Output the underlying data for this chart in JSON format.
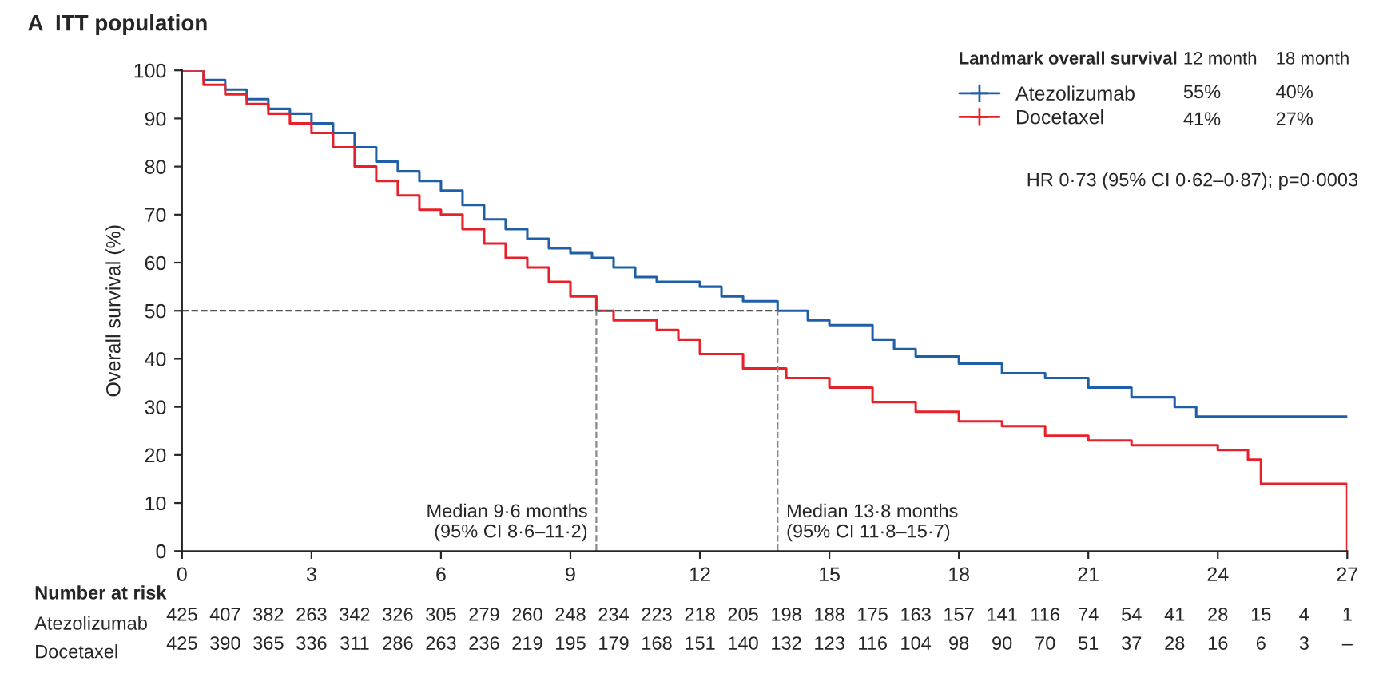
{
  "chart_data": {
    "type": "step",
    "title": "A  ITT population",
    "ylabel": "Overall survival (%)",
    "xlim": [
      0,
      27
    ],
    "xticks": [
      0,
      3,
      6,
      9,
      12,
      15,
      18,
      21,
      24,
      27
    ],
    "ylim": [
      0,
      100
    ],
    "yticks": [
      0,
      10,
      20,
      30,
      40,
      50,
      60,
      70,
      80,
      90,
      100
    ],
    "grid": false,
    "legend": "top right",
    "series": [
      {
        "name": "Atezolizumab",
        "color": "#1f5fa8",
        "x": [
          0,
          0.5,
          1,
          1.5,
          2,
          2.5,
          3,
          3.5,
          4,
          4.5,
          5,
          5.5,
          6,
          6.5,
          7,
          7.5,
          8,
          8.5,
          9,
          9.5,
          10,
          10.5,
          11,
          12,
          12.5,
          13,
          13.8,
          14.5,
          15,
          16,
          16.5,
          17,
          18,
          19,
          20,
          21,
          22,
          23,
          23.5,
          27
        ],
        "values": [
          100,
          98,
          96,
          94,
          92,
          91,
          89,
          87,
          84,
          81,
          79,
          77,
          75,
          72,
          69,
          67,
          65,
          63,
          62,
          61,
          59,
          57,
          56,
          55,
          53,
          52,
          50,
          48,
          47,
          44,
          42,
          40.5,
          39,
          37,
          36,
          34,
          32,
          30,
          28,
          28
        ]
      },
      {
        "name": "Docetaxel",
        "color": "#e8202a",
        "x": [
          0,
          0.5,
          1,
          1.5,
          2,
          2.5,
          3,
          3.5,
          4,
          4.5,
          5,
          5.5,
          6,
          6.5,
          7,
          7.5,
          8,
          8.5,
          9,
          9.6,
          10,
          11,
          11.5,
          12,
          13,
          14,
          15,
          16,
          17,
          18,
          19,
          20,
          21,
          22,
          23,
          24,
          24.7,
          25,
          26.9,
          27
        ],
        "values": [
          100,
          97,
          95,
          93,
          91,
          89,
          87,
          84,
          80,
          77,
          74,
          71,
          70,
          67,
          64,
          61,
          59,
          56,
          53,
          50,
          48,
          46,
          44,
          41,
          38,
          36,
          34,
          31,
          29,
          27,
          26,
          24,
          23,
          22,
          22,
          21,
          19,
          14,
          14,
          0
        ]
      }
    ],
    "ref_lines": [
      {
        "axis": "y",
        "value": 50,
        "color": "#555555",
        "line_style": "dashed"
      },
      {
        "axis": "x",
        "value": 9.6,
        "color": "#888888",
        "line_style": "dashed"
      },
      {
        "axis": "x",
        "value": 13.8,
        "color": "#888888",
        "line_style": "dashed"
      }
    ],
    "annotations": [
      "Landmark overall survival",
      "12 month",
      "18 month",
      "55%",
      "40%",
      "41%",
      "27%",
      "HR 0·73 (95% CI 0·62–0·87); p=0·0003",
      "Median 9·6 months\n(95% CI 8·6–11·2)",
      "Median 13·8 months\n(95% CI 11·8–15·7)",
      "Number at risk",
      "425 407 382 263 342 326 305 279 260 248 234 223 218 205 198 188 175 163 157 141 116 74 54 41 28 15 4 1",
      "425 390 365 336 311 286 263 236 219 195 179 168 151 140 132 123 116 104 98 90 70 51 37 28 16 6 3 –"
    ]
  }
}
